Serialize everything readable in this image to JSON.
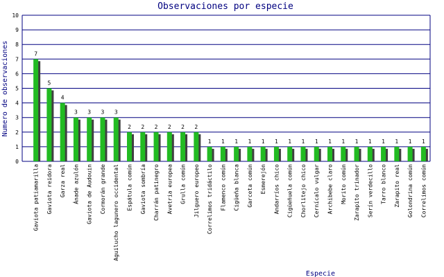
{
  "chart_data": {
    "type": "bar",
    "title": "Observaciones por especie",
    "xlabel": "Especie",
    "ylabel": "Numero de observaciones",
    "ylim": [
      0,
      10
    ],
    "yticks": [
      0,
      1,
      2,
      3,
      4,
      5,
      6,
      7,
      8,
      9,
      10
    ],
    "grid": true,
    "colors": {
      "bar": "#22bb22",
      "shadow": "#404040",
      "grid": "#000080",
      "text": "#000080"
    },
    "categories": [
      "Gaviota patiamarilla",
      "Gaviota reidora",
      "Garza real",
      "Ánade azulón",
      "Gaviota de Audouin",
      "Cormorán grande",
      "Aguilucho lagunero occidental",
      "Espátula común",
      "Gaviota sombría",
      "Charrán patinegro",
      "Avetria europea",
      "Grulla común",
      "Jilguero europeo",
      "Correlimos tridáctilo",
      "Flamenco común",
      "Cigüeña blanca",
      "Garceta común",
      "Esmerejón",
      "Andarríos chico",
      "Cigüeñuela común",
      "Chorlitejo chico",
      "Cernícalo vulgar",
      "Archibebe claro",
      "Morito común",
      "Zarapito trinador",
      "Serín verdecillo",
      "Tarro blanco",
      "Zarapito real",
      "Golondrina común",
      "Correlimos común"
    ],
    "values": [
      7,
      5,
      4,
      3,
      3,
      3,
      3,
      2,
      2,
      2,
      2,
      2,
      2,
      1,
      1,
      1,
      1,
      1,
      1,
      1,
      1,
      1,
      1,
      1,
      1,
      1,
      1,
      1,
      1,
      1
    ]
  }
}
